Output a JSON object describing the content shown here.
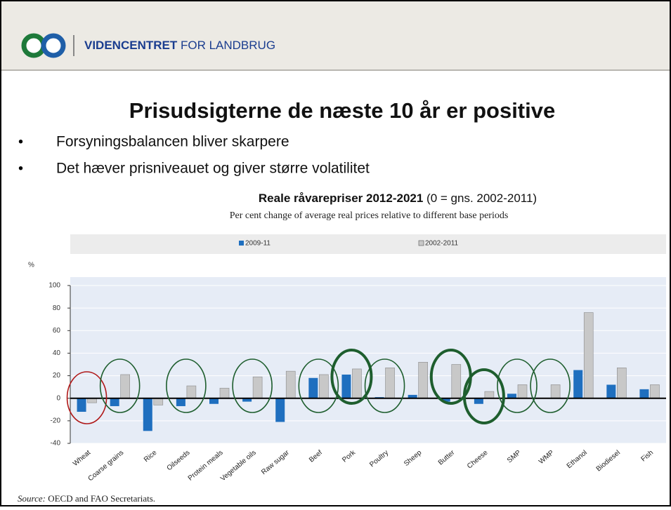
{
  "header": {
    "org": "VIDENCENTRET",
    "org_suffix": "FOR LANDBRUG"
  },
  "slide_title": "Prisudsigterne de næste 10 år er positive",
  "bullets": [
    "Forsyningsbalancen bliver skarpere",
    "Det hæver prisniveauet og giver større volatilitet"
  ],
  "source_label": "Source:",
  "source_text": "OECD and FAO Secretariats.",
  "chart_data": {
    "type": "bar",
    "title": "Reale råvarepriser 2012-2021",
    "title_note": "(0 = gns. 2002-2011)",
    "subtitle": "Per cent change of average real prices relative to different base periods",
    "y_label": "%",
    "categories": [
      "Wheat",
      "Coarse grains",
      "Rice",
      "Oilseeds",
      "Protein meals",
      "Vegetable oils",
      "Raw sugar",
      "Beef",
      "Pork",
      "Poultry",
      "Sheep",
      "Butter",
      "Cheese",
      "SMP",
      "WMP",
      "Ethanol",
      "Biodiesel",
      "Fish"
    ],
    "series": [
      {
        "name": "2009-11",
        "color": "#1f6fbf",
        "values": [
          -12,
          -7,
          -29,
          -7,
          -5,
          -3,
          -21,
          18,
          21,
          1,
          3,
          -3,
          -5,
          4,
          0,
          25,
          12,
          8
        ]
      },
      {
        "name": "2002-2011",
        "color": "#c8c8c8",
        "values": [
          -4,
          21,
          -6,
          11,
          9,
          19,
          24,
          21,
          26,
          27,
          32,
          30,
          6,
          12,
          12,
          76,
          27,
          12
        ]
      }
    ],
    "ylim": [
      -40,
      100
    ],
    "yticks": [
      -40,
      -20,
      0,
      20,
      40,
      60,
      80,
      100
    ],
    "grid": true,
    "legend": "top"
  }
}
